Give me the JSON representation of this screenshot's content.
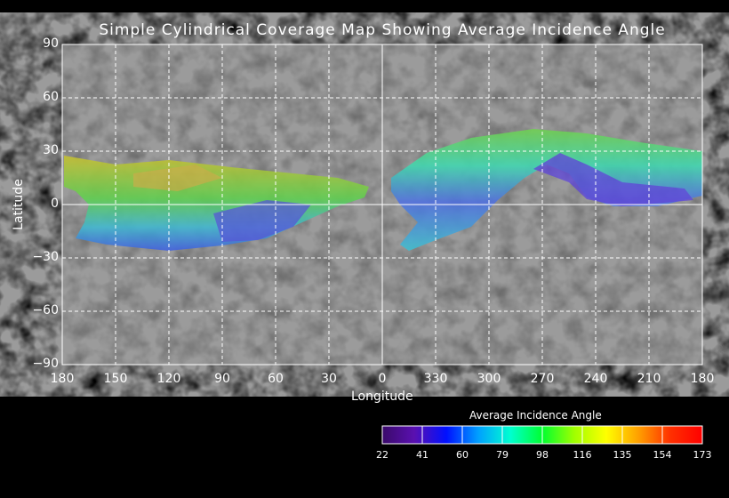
{
  "title": "Simple Cylindrical Coverage Map Showing Average Incidence Angle",
  "chart_data": {
    "type": "map",
    "projection": "simple cylindrical",
    "xlabel": "Longitude",
    "ylabel": "Latitude",
    "x_ticks": [
      "180",
      "150",
      "120",
      "90",
      "60",
      "30",
      "0",
      "330",
      "300",
      "270",
      "240",
      "210",
      "180"
    ],
    "y_ticks": [
      "90",
      "60",
      "30",
      "0",
      "-30",
      "-60",
      "-90"
    ],
    "grid": true,
    "colorbar": {
      "title": "Average Incidence Angle",
      "ticks": [
        "22",
        "41",
        "60",
        "79",
        "98",
        "116",
        "135",
        "154",
        "173"
      ],
      "colors": [
        "#3a0a6a",
        "#5a10b0",
        "#0010ff",
        "#00a0ff",
        "#00ffd0",
        "#00ff30",
        "#a0ff00",
        "#ffff00",
        "#ffa000",
        "#ff3000",
        "#ff0000"
      ]
    }
  }
}
